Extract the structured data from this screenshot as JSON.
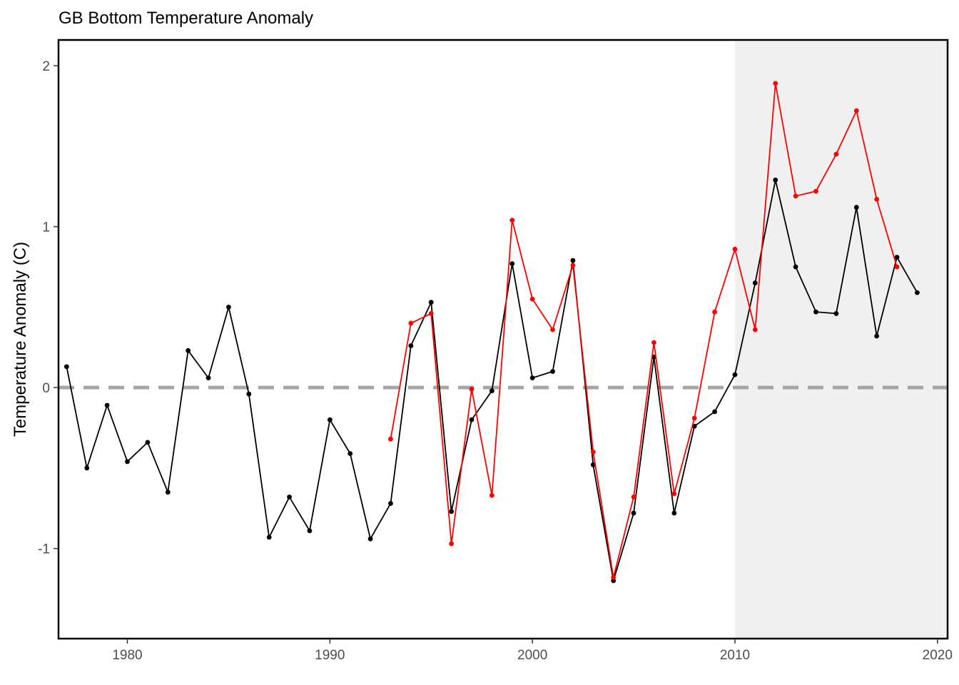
{
  "chart_data": {
    "type": "line",
    "title": "GB Bottom Temperature Anomaly",
    "xlabel": "",
    "ylabel": "Temperature Anomaly (C)",
    "xlim": [
      1976.6,
      2020.5
    ],
    "ylim": [
      -1.56,
      2.16
    ],
    "x_ticks": [
      1980,
      1990,
      2000,
      2010,
      2020
    ],
    "y_ticks": [
      -1,
      0,
      1,
      2
    ],
    "y_tick_labels": [
      "-1",
      "0",
      "1",
      "2"
    ],
    "reference_line": {
      "y": 0,
      "style": "dashed",
      "color": "#a6a6a6"
    },
    "shaded_region": {
      "x_start": 2010,
      "x_end": 2020.5,
      "color": "#f0f0f0"
    },
    "grid": false,
    "series": [
      {
        "color": "#000000",
        "x": [
          1977,
          1978,
          1979,
          1980,
          1981,
          1982,
          1983,
          1984,
          1985,
          1986,
          1987,
          1988,
          1989,
          1990,
          1991,
          1992,
          1993,
          1994,
          1995,
          1996,
          1997,
          1998,
          1999,
          2000,
          2001,
          2002,
          2003,
          2004,
          2005,
          2006,
          2007,
          2008,
          2009,
          2010,
          2011,
          2012,
          2013,
          2014,
          2015,
          2016,
          2017,
          2018,
          2019
        ],
        "y": [
          0.13,
          -0.5,
          -0.11,
          -0.46,
          -0.34,
          -0.65,
          0.23,
          0.06,
          0.5,
          -0.04,
          -0.93,
          -0.68,
          -0.89,
          -0.2,
          -0.41,
          -0.94,
          -0.72,
          0.26,
          0.53,
          -0.77,
          -0.2,
          -0.02,
          0.77,
          0.06,
          0.1,
          0.79,
          -0.48,
          -1.2,
          -0.78,
          0.19,
          -0.78,
          -0.24,
          -0.15,
          0.08,
          0.65,
          1.29,
          0.75,
          0.47,
          0.46,
          1.12,
          0.32,
          0.81,
          0.59
        ]
      },
      {
        "color": "#ff0000",
        "x": [
          1993,
          1994,
          1995,
          1996,
          1997,
          1998,
          1999,
          2000,
          2001,
          2002,
          2003,
          2004,
          2005,
          2006,
          2007,
          2008,
          2009,
          2010,
          2011,
          2012,
          2013,
          2014,
          2015,
          2016,
          2017,
          2018
        ],
        "y": [
          -0.32,
          0.4,
          0.46,
          -0.97,
          -0.01,
          -0.67,
          1.04,
          0.55,
          0.36,
          0.76,
          -0.4,
          -1.18,
          -0.68,
          0.28,
          -0.66,
          -0.19,
          0.47,
          0.86,
          0.36,
          1.89,
          1.19,
          1.22,
          1.45,
          1.72,
          1.17,
          0.75
        ]
      }
    ]
  }
}
